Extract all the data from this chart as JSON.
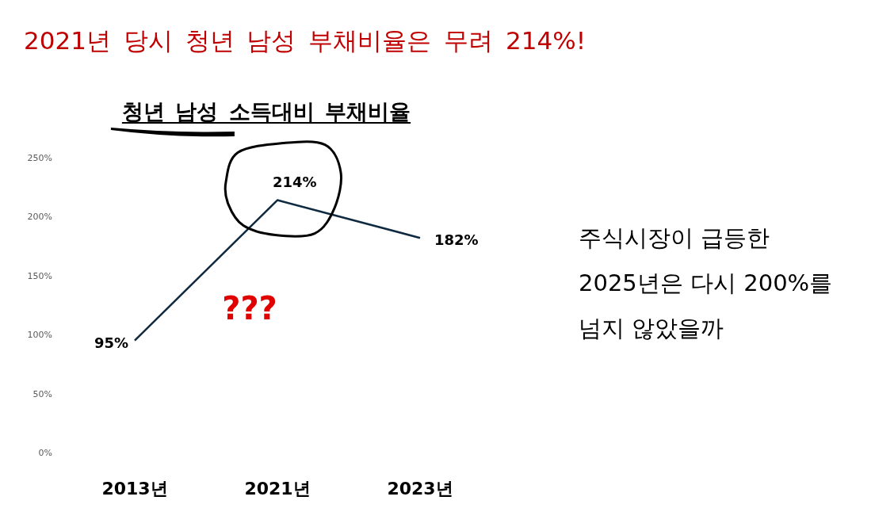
{
  "chart_data": {
    "type": "line",
    "title": "2021년 당시 청년 남성 부채비율은 무려 214%!",
    "subtitle": "청년 남성 소득대비 부채비율",
    "categories": [
      "2013년",
      "2021년",
      "2023년"
    ],
    "values": [
      95,
      214,
      182
    ],
    "value_labels": [
      "95%",
      "214%",
      "182%"
    ],
    "color": "#0f2a40",
    "ylim": [
      0,
      250
    ],
    "yticks": [
      {
        "value": 0,
        "label": "0%"
      },
      {
        "value": 50,
        "label": "50%"
      },
      {
        "value": 100,
        "label": "100%"
      },
      {
        "value": 150,
        "label": "150%"
      },
      {
        "value": 200,
        "label": "200%"
      },
      {
        "value": 250,
        "label": "250%"
      }
    ],
    "annotations": [
      "???",
      "주식시장이 급등한 2025년은 다시 200%를 넘지 않았을까"
    ]
  }
}
